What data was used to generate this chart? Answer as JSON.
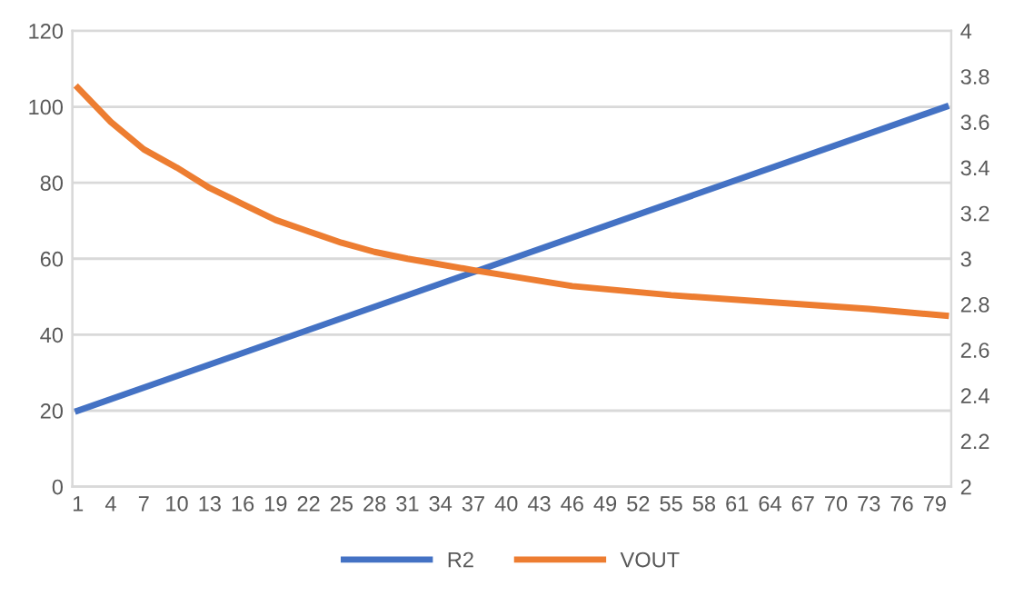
{
  "chart_data": {
    "type": "line",
    "xlim": [
      0.5,
      80.5
    ],
    "xticks": [
      1,
      4,
      7,
      10,
      13,
      16,
      19,
      22,
      25,
      28,
      31,
      34,
      37,
      40,
      43,
      46,
      49,
      52,
      55,
      58,
      61,
      64,
      67,
      70,
      73,
      76,
      79
    ],
    "ylim": [
      0,
      120
    ],
    "yticks": [
      0,
      20,
      40,
      60,
      80,
      100,
      120
    ],
    "y2lim": [
      2,
      4
    ],
    "y2ticks": [
      2,
      2.2,
      2.4,
      2.6,
      2.8,
      3,
      3.2,
      3.4,
      3.6,
      3.8,
      4
    ],
    "grid": "y",
    "legend": "bottom",
    "marker": "none",
    "line_style": "solid",
    "series": [
      {
        "name": "R2",
        "color": "#4472c4",
        "x": [
          1,
          80
        ],
        "values": [
          20,
          100
        ]
      },
      {
        "name": "VOUT",
        "color": "#ed7d31",
        "axis": "y2",
        "x": [
          1,
          4,
          7,
          10,
          13,
          16,
          19,
          22,
          25,
          28,
          31,
          37,
          46,
          55,
          64,
          73,
          80
        ],
        "values": [
          3.75,
          3.6,
          3.48,
          3.4,
          3.31,
          3.24,
          3.17,
          3.12,
          3.07,
          3.03,
          3.0,
          2.95,
          2.88,
          2.84,
          2.81,
          2.78,
          2.75
        ]
      }
    ]
  }
}
